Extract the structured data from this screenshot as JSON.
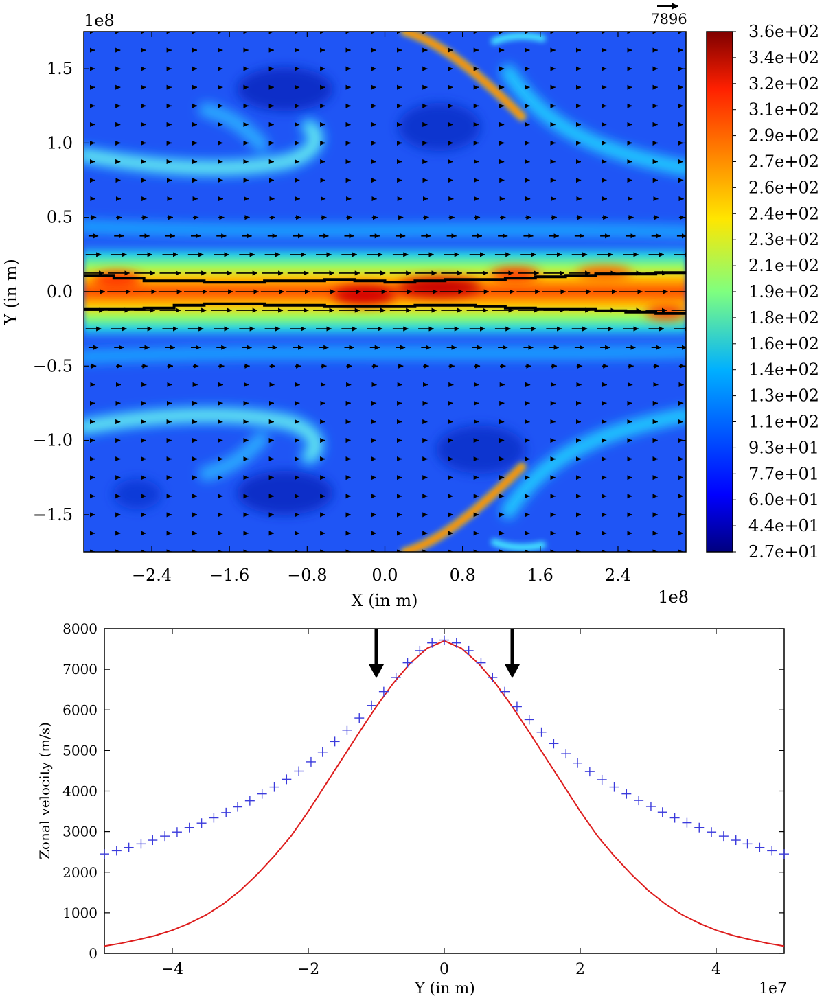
{
  "chart_data": [
    {
      "type": "heatmap",
      "title": "",
      "xlabel": "X (in m)",
      "ylabel": "Y (in m)",
      "x_offset_label": "1e8",
      "y_offset_label": "1e8",
      "xlim": [
        -3.1,
        3.1
      ],
      "ylim": [
        -1.75,
        1.75
      ],
      "x_ticks": [
        -2.4,
        -1.6,
        -0.8,
        0.0,
        0.8,
        1.6,
        2.4
      ],
      "x_tick_labels": [
        "−2.4",
        "−1.6",
        "−0.8",
        "0.0",
        "0.8",
        "1.6",
        "2.4"
      ],
      "y_ticks": [
        1.5,
        1.0,
        0.5,
        0.0,
        -0.5,
        -1.0,
        -1.5
      ],
      "y_tick_labels": [
        "1.5",
        "1.0",
        "0.5",
        "0.0",
        "−0.5",
        "−1.0",
        "−1.5"
      ],
      "quiver_key_label": "7896",
      "colorbar": {
        "min": 27,
        "max": 360,
        "labels": [
          "3.6e+02",
          "3.4e+02",
          "3.2e+02",
          "3.1e+02",
          "2.9e+02",
          "2.7e+02",
          "2.6e+02",
          "2.4e+02",
          "2.3e+02",
          "2.1e+02",
          "1.9e+02",
          "1.8e+02",
          "1.6e+02",
          "1.4e+02",
          "1.3e+02",
          "1.1e+02",
          "9.3e+01",
          "7.7e+01",
          "6.0e+01",
          "4.4e+01",
          "2.7e+01"
        ]
      },
      "equatorial_contour_y": [
        0.1,
        -0.1
      ],
      "grid": false
    },
    {
      "type": "line",
      "title": "",
      "xlabel": "Y (in m)",
      "ylabel": "Zonal velocity (m/s)",
      "x_offset_label": "1e7",
      "xlim": [
        -5,
        5
      ],
      "ylim": [
        0,
        8000
      ],
      "x_ticks": [
        -4,
        -2,
        0,
        2,
        4
      ],
      "x_tick_labels": [
        "−4",
        "−2",
        "0",
        "2",
        "4"
      ],
      "y_ticks": [
        0,
        1000,
        2000,
        3000,
        4000,
        5000,
        6000,
        7000,
        8000
      ],
      "y_tick_labels": [
        "0",
        "1000",
        "2000",
        "3000",
        "4000",
        "5000",
        "6000",
        "7000",
        "8000"
      ],
      "grid": false,
      "arrow_markers_x": [
        -1.0,
        1.0
      ],
      "series": [
        {
          "marker": "plus",
          "color": "#3b3bdc",
          "x": [
            -5.0,
            -4.82,
            -4.64,
            -4.46,
            -4.29,
            -4.11,
            -3.93,
            -3.75,
            -3.57,
            -3.39,
            -3.21,
            -3.04,
            -2.86,
            -2.68,
            -2.5,
            -2.32,
            -2.14,
            -1.96,
            -1.79,
            -1.61,
            -1.43,
            -1.25,
            -1.07,
            -0.89,
            -0.71,
            -0.54,
            -0.36,
            -0.18,
            0.0,
            0.18,
            0.36,
            0.54,
            0.71,
            0.89,
            1.07,
            1.25,
            1.43,
            1.61,
            1.79,
            1.96,
            2.14,
            2.32,
            2.5,
            2.68,
            2.86,
            3.04,
            3.21,
            3.39,
            3.57,
            3.75,
            3.93,
            4.11,
            4.29,
            4.46,
            4.64,
            4.82,
            5.0
          ],
          "y": [
            2450,
            2530,
            2610,
            2700,
            2790,
            2890,
            2990,
            3100,
            3210,
            3340,
            3470,
            3610,
            3760,
            3930,
            4100,
            4290,
            4490,
            4720,
            4960,
            5220,
            5500,
            5800,
            6110,
            6450,
            6800,
            7160,
            7460,
            7650,
            7720,
            7650,
            7460,
            7160,
            6800,
            6450,
            6080,
            5760,
            5450,
            5170,
            4920,
            4690,
            4480,
            4280,
            4100,
            3930,
            3770,
            3620,
            3480,
            3340,
            3220,
            3100,
            2990,
            2890,
            2790,
            2700,
            2610,
            2530,
            2450
          ]
        },
        {
          "marker": "line",
          "color": "#dd1c1c",
          "x": [
            -5.0,
            -4.75,
            -4.5,
            -4.25,
            -4.0,
            -3.75,
            -3.5,
            -3.25,
            -3.0,
            -2.75,
            -2.5,
            -2.25,
            -2.0,
            -1.75,
            -1.5,
            -1.25,
            -1.0,
            -0.75,
            -0.5,
            -0.25,
            0.0,
            0.25,
            0.5,
            0.75,
            1.0,
            1.25,
            1.5,
            1.75,
            2.0,
            2.25,
            2.5,
            2.75,
            3.0,
            3.25,
            3.5,
            3.75,
            4.0,
            4.25,
            4.5,
            4.75,
            5.0
          ],
          "y": [
            180,
            250,
            340,
            440,
            570,
            740,
            950,
            1220,
            1550,
            1950,
            2400,
            2900,
            3500,
            4150,
            4800,
            5450,
            6080,
            6660,
            7150,
            7520,
            7700,
            7520,
            7150,
            6660,
            6080,
            5450,
            4800,
            4150,
            3500,
            2900,
            2400,
            1950,
            1550,
            1220,
            950,
            740,
            570,
            440,
            340,
            250,
            180
          ]
        }
      ]
    }
  ]
}
